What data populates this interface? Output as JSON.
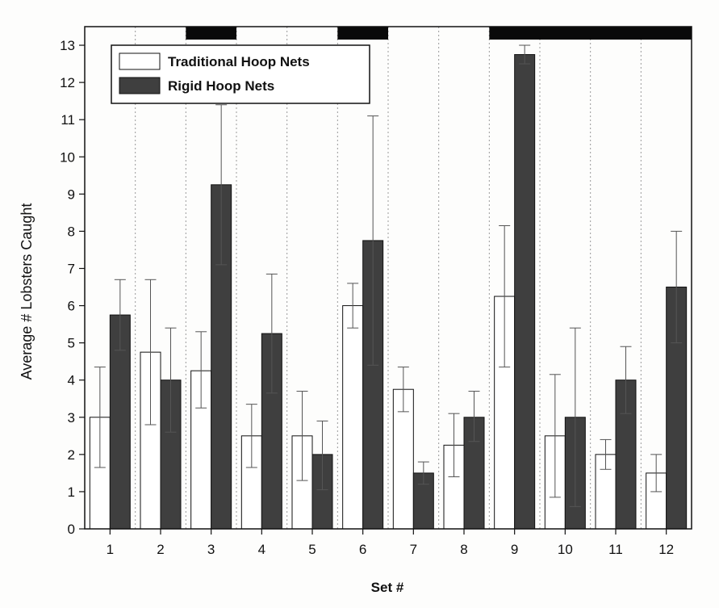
{
  "chart_data": {
    "type": "bar",
    "xlabel": "Set #",
    "ylabel": "Average # Lobsters Caught",
    "ylim": [
      0,
      13.5
    ],
    "yticks": [
      0,
      1,
      2,
      3,
      4,
      5,
      6,
      7,
      8,
      9,
      10,
      11,
      12,
      13
    ],
    "categories": [
      "1",
      "2",
      "3",
      "4",
      "5",
      "6",
      "7",
      "8",
      "9",
      "10",
      "11",
      "12"
    ],
    "series": [
      {
        "name": "Traditional Hoop Nets",
        "color": "#ffffff",
        "values": [
          3.0,
          4.75,
          4.25,
          2.5,
          2.5,
          6.0,
          3.75,
          2.25,
          6.25,
          2.5,
          2.0,
          1.5
        ],
        "error_low": [
          1.65,
          2.8,
          3.25,
          1.65,
          1.3,
          5.4,
          3.15,
          1.4,
          4.35,
          0.85,
          1.6,
          1.0
        ],
        "error_high": [
          4.35,
          6.7,
          5.3,
          3.35,
          3.7,
          6.6,
          4.35,
          3.1,
          8.15,
          4.15,
          2.4,
          2.0
        ]
      },
      {
        "name": "Rigid Hoop Nets",
        "color": "#3f3f3f",
        "values": [
          5.75,
          4.0,
          9.25,
          5.25,
          2.0,
          7.75,
          1.5,
          3.0,
          12.75,
          3.0,
          4.0,
          6.5
        ],
        "error_low": [
          4.8,
          2.6,
          7.1,
          3.65,
          1.05,
          4.4,
          1.2,
          2.35,
          12.5,
          0.6,
          3.1,
          5.0
        ],
        "error_high": [
          6.7,
          5.4,
          11.4,
          6.85,
          2.9,
          11.1,
          1.8,
          3.7,
          13.0,
          5.4,
          4.9,
          8.0
        ]
      }
    ],
    "top_bar_segments": [
      {
        "start": 2,
        "end": 2
      },
      {
        "start": 5,
        "end": 5
      },
      {
        "start": 8,
        "end": 11
      }
    ],
    "legend_position": "top-left",
    "grid": "vertical dotted separators between sets"
  }
}
